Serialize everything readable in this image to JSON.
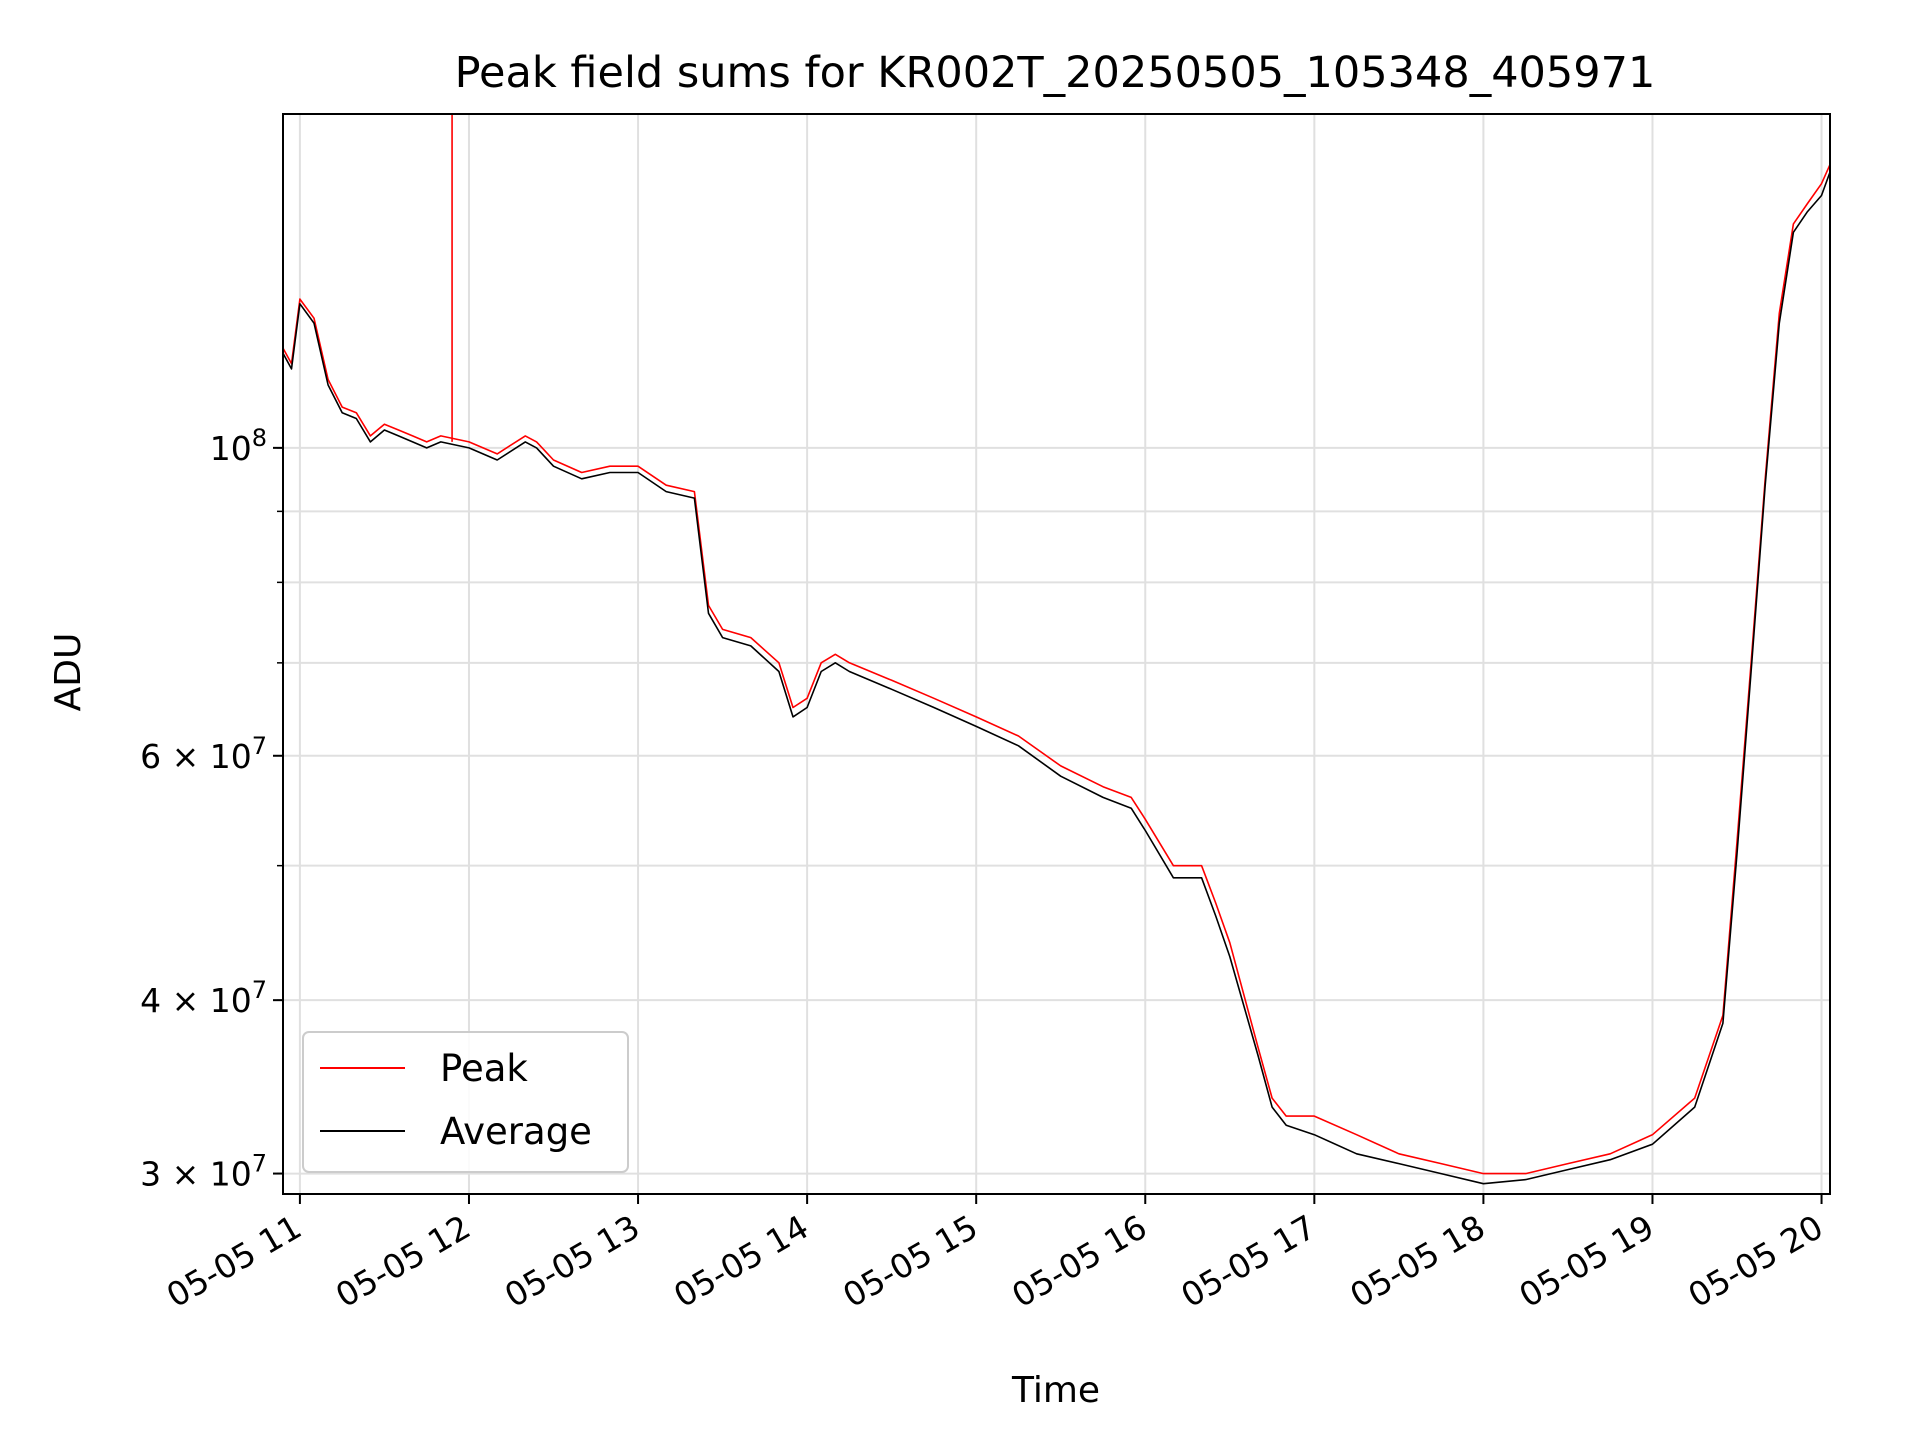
{
  "chart_data": {
    "type": "line",
    "title": "Peak field sums for KR002T_20250505_105348_405971",
    "xlabel": "Time",
    "ylabel": "ADU",
    "x_axis": {
      "type": "datetime",
      "range": [
        "2025-05-05 10:54",
        "2025-05-05 20:03"
      ],
      "ticks": [
        {
          "value": "2025-05-05 11:00",
          "label": "05-05 11"
        },
        {
          "value": "2025-05-05 12:00",
          "label": "05-05 12"
        },
        {
          "value": "2025-05-05 13:00",
          "label": "05-05 13"
        },
        {
          "value": "2025-05-05 14:00",
          "label": "05-05 14"
        },
        {
          "value": "2025-05-05 15:00",
          "label": "05-05 15"
        },
        {
          "value": "2025-05-05 16:00",
          "label": "05-05 16"
        },
        {
          "value": "2025-05-05 17:00",
          "label": "05-05 17"
        },
        {
          "value": "2025-05-05 18:00",
          "label": "05-05 18"
        },
        {
          "value": "2025-05-05 19:00",
          "label": "05-05 19"
        },
        {
          "value": "2025-05-05 20:00",
          "label": "05-05 20"
        }
      ]
    },
    "y_axis": {
      "scale": "log",
      "range": [
        29000000,
        174000000
      ],
      "major_ticks": [
        {
          "value": 30000000,
          "mantissa": "3",
          "exponent": "7"
        },
        {
          "value": 40000000,
          "mantissa": "4",
          "exponent": "7"
        },
        {
          "value": 60000000,
          "mantissa": "6",
          "exponent": "7"
        },
        {
          "value": 100000000,
          "mantissa": "",
          "exponent": "8"
        }
      ],
      "minor_ticks": [
        30000000,
        40000000,
        50000000,
        60000000,
        70000000,
        80000000,
        90000000,
        100000000
      ]
    },
    "grid": true,
    "legend": {
      "position": "lower-left"
    },
    "series": [
      {
        "name": "Peak",
        "color": "#ff0000",
        "x": [
          "2025-05-05 10:54",
          "2025-05-05 10:57",
          "2025-05-05 11:00",
          "2025-05-05 11:05",
          "2025-05-05 11:10",
          "2025-05-05 11:15",
          "2025-05-05 11:20",
          "2025-05-05 11:25",
          "2025-05-05 11:30",
          "2025-05-05 11:35",
          "2025-05-05 11:40",
          "2025-05-05 11:45",
          "2025-05-05 11:50",
          "2025-05-05 12:00",
          "2025-05-05 12:10",
          "2025-05-05 12:20",
          "2025-05-05 12:24",
          "2025-05-05 12:30",
          "2025-05-05 12:40",
          "2025-05-05 12:50",
          "2025-05-05 13:00",
          "2025-05-05 13:10",
          "2025-05-05 13:20",
          "2025-05-05 13:25",
          "2025-05-05 13:30",
          "2025-05-05 13:40",
          "2025-05-05 13:50",
          "2025-05-05 13:55",
          "2025-05-05 14:00",
          "2025-05-05 14:05",
          "2025-05-05 14:10",
          "2025-05-05 14:15",
          "2025-05-05 14:30",
          "2025-05-05 14:45",
          "2025-05-05 15:00",
          "2025-05-05 15:15",
          "2025-05-05 15:30",
          "2025-05-05 15:45",
          "2025-05-05 15:55",
          "2025-05-05 16:00",
          "2025-05-05 16:10",
          "2025-05-05 16:20",
          "2025-05-05 16:25",
          "2025-05-05 16:30",
          "2025-05-05 16:40",
          "2025-05-05 16:45",
          "2025-05-05 16:50",
          "2025-05-05 17:00",
          "2025-05-05 17:15",
          "2025-05-05 17:30",
          "2025-05-05 17:45",
          "2025-05-05 18:00",
          "2025-05-05 18:15",
          "2025-05-05 18:30",
          "2025-05-05 18:45",
          "2025-05-05 19:00",
          "2025-05-05 19:15",
          "2025-05-05 19:25",
          "2025-05-05 19:30",
          "2025-05-05 19:35",
          "2025-05-05 19:40",
          "2025-05-05 19:45",
          "2025-05-05 19:50",
          "2025-05-05 19:55",
          "2025-05-05 20:00",
          "2025-05-05 20:03"
        ],
        "values": [
          118000000,
          115000000,
          128000000,
          124000000,
          112000000,
          107000000,
          106000000,
          102000000,
          104000000,
          103000000,
          102000000,
          101000000,
          102000000,
          101000000,
          99000000,
          102000000,
          101000000,
          98000000,
          96000000,
          97000000,
          97000000,
          94000000,
          93000000,
          77000000,
          74000000,
          73000000,
          70000000,
          65000000,
          66000000,
          70000000,
          71000000,
          70000000,
          68000000,
          66000000,
          64000000,
          62000000,
          59000000,
          57000000,
          56000000,
          54000000,
          50000000,
          50000000,
          47000000,
          44000000,
          37000000,
          34000000,
          33000000,
          33000000,
          32000000,
          31000000,
          30500000,
          30000000,
          30000000,
          30500000,
          31000000,
          32000000,
          34000000,
          39000000,
          52000000,
          70000000,
          95000000,
          125000000,
          145000000,
          150000000,
          155000000,
          160000000
        ]
      },
      {
        "name": "Average",
        "color": "#000000",
        "x": [
          "2025-05-05 10:54",
          "2025-05-05 10:57",
          "2025-05-05 11:00",
          "2025-05-05 11:05",
          "2025-05-05 11:10",
          "2025-05-05 11:15",
          "2025-05-05 11:20",
          "2025-05-05 11:25",
          "2025-05-05 11:30",
          "2025-05-05 11:35",
          "2025-05-05 11:40",
          "2025-05-05 11:45",
          "2025-05-05 11:50",
          "2025-05-05 12:00",
          "2025-05-05 12:10",
          "2025-05-05 12:20",
          "2025-05-05 12:24",
          "2025-05-05 12:30",
          "2025-05-05 12:40",
          "2025-05-05 12:50",
          "2025-05-05 13:00",
          "2025-05-05 13:10",
          "2025-05-05 13:20",
          "2025-05-05 13:25",
          "2025-05-05 13:30",
          "2025-05-05 13:40",
          "2025-05-05 13:50",
          "2025-05-05 13:55",
          "2025-05-05 14:00",
          "2025-05-05 14:05",
          "2025-05-05 14:10",
          "2025-05-05 14:15",
          "2025-05-05 14:30",
          "2025-05-05 14:45",
          "2025-05-05 15:00",
          "2025-05-05 15:15",
          "2025-05-05 15:30",
          "2025-05-05 15:45",
          "2025-05-05 15:55",
          "2025-05-05 16:00",
          "2025-05-05 16:10",
          "2025-05-05 16:20",
          "2025-05-05 16:25",
          "2025-05-05 16:30",
          "2025-05-05 16:40",
          "2025-05-05 16:45",
          "2025-05-05 16:50",
          "2025-05-05 17:00",
          "2025-05-05 17:15",
          "2025-05-05 17:30",
          "2025-05-05 17:45",
          "2025-05-05 18:00",
          "2025-05-05 18:15",
          "2025-05-05 18:30",
          "2025-05-05 18:45",
          "2025-05-05 19:00",
          "2025-05-05 19:15",
          "2025-05-05 19:25",
          "2025-05-05 19:30",
          "2025-05-05 19:35",
          "2025-05-05 19:40",
          "2025-05-05 19:45",
          "2025-05-05 19:50",
          "2025-05-05 19:55",
          "2025-05-05 20:00",
          "2025-05-05 20:03"
        ],
        "values": [
          117000000,
          114000000,
          127000000,
          123000000,
          111000000,
          106000000,
          105000000,
          101000000,
          103000000,
          102000000,
          101000000,
          100000000,
          101000000,
          100000000,
          98000000,
          101000000,
          100000000,
          97000000,
          95000000,
          96000000,
          96000000,
          93000000,
          92000000,
          76000000,
          73000000,
          72000000,
          69000000,
          64000000,
          65000000,
          69000000,
          70000000,
          69000000,
          67000000,
          65000000,
          63000000,
          61000000,
          58000000,
          56000000,
          55000000,
          53000000,
          49000000,
          49000000,
          46000000,
          43000000,
          36500000,
          33500000,
          32500000,
          32000000,
          31000000,
          30500000,
          30000000,
          29500000,
          29700000,
          30200000,
          30700000,
          31500000,
          33500000,
          38500000,
          51000000,
          69000000,
          94000000,
          123000000,
          143000000,
          148000000,
          152000000,
          158000000
        ]
      }
    ],
    "annotations": {
      "spike": {
        "x": "2025-05-05 11:54",
        "value": 174000000
      }
    }
  }
}
